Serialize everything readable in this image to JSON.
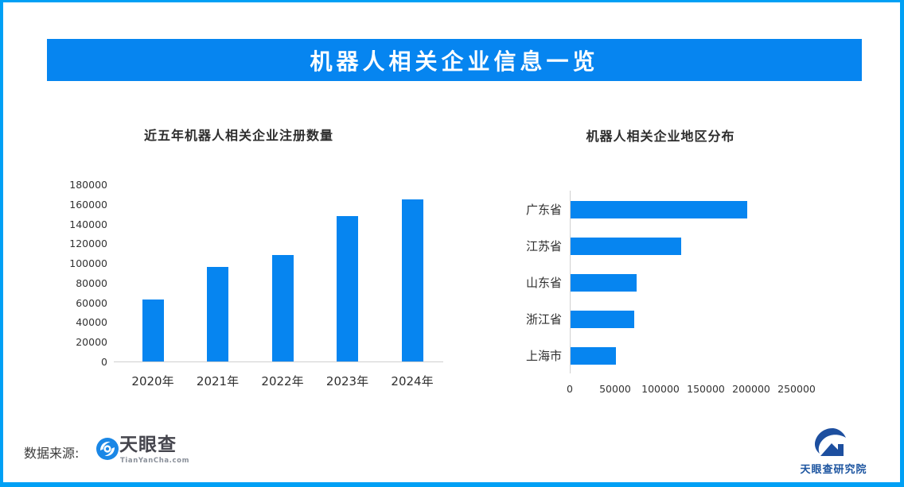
{
  "page": {
    "banner_title": "机器人相关企业信息一览",
    "colors": {
      "border": "#00a0f5",
      "banner": "#0685f0",
      "bar": "#0685f0",
      "axis_line": "#d0d0d0"
    }
  },
  "chart_data": [
    {
      "type": "bar",
      "title": "近五年机器人相关企业注册数量",
      "categories": [
        "2020年",
        "2021年",
        "2022年",
        "2023年",
        "2024年"
      ],
      "values": [
        63000,
        96000,
        108000,
        148000,
        165000
      ],
      "xlabel": "",
      "ylabel": "",
      "ylim": [
        0,
        180000
      ],
      "ytick_step": 20000,
      "grid": false,
      "legend": "none",
      "bar_color": "#0685f0"
    },
    {
      "type": "bar",
      "orientation": "horizontal",
      "title": "机器人相关企业地区分布",
      "categories": [
        "广东省",
        "江苏省",
        "山东省",
        "浙江省",
        "上海市"
      ],
      "values": [
        195000,
        122000,
        73000,
        70000,
        50000
      ],
      "xlabel": "",
      "ylabel": "",
      "xlim": [
        0,
        250000
      ],
      "xtick_step": 50000,
      "grid": false,
      "legend": "none",
      "bar_color": "#0685f0"
    }
  ],
  "footer": {
    "source_label": "数据来源:",
    "tianyancha_logo": {
      "icon": "tianyancha-eye-icon",
      "name": "天眼查",
      "domain": "TianYanCha.com"
    },
    "research_logo": {
      "icon": "tianyancha-research-icon",
      "name": "天眼查研究院"
    }
  }
}
